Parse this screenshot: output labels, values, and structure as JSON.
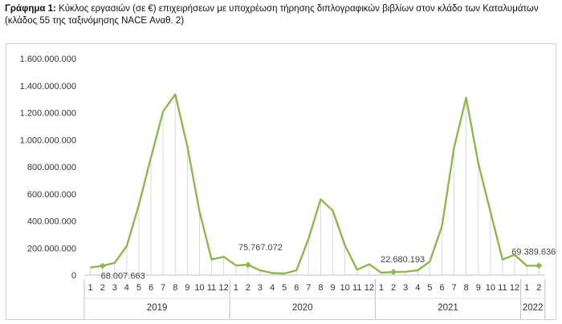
{
  "caption": {
    "prefix": "Γράφημα 1:",
    "text": "Κύκλος εργασιών (σε €) επιχειρήσεων με υποχρέωση τήρησης διπλογραφικών βιβλίων στον κλάδο των Καταλυμάτων (κλάδος 55 της ταξινόμησης NACE Αναθ. 2)"
  },
  "chart_data": {
    "type": "line",
    "title": "",
    "xlabel": "",
    "ylabel": "",
    "ylim": [
      0,
      1600000000
    ],
    "yticks": [
      "0",
      "200.000.000",
      "400.000.000",
      "600.000.000",
      "800.000.000",
      "1.000.000.000",
      "1.200.000.000",
      "1.400.000.000",
      "1.600.000.000"
    ],
    "yticks_values": [
      0,
      200000000,
      400000000,
      600000000,
      800000000,
      1000000000,
      1200000000,
      1400000000,
      1600000000
    ],
    "grid": "vertical drop lines",
    "color": "#92b554",
    "years": [
      {
        "label": "2019",
        "months": 12
      },
      {
        "label": "2020",
        "months": 12
      },
      {
        "label": "2021",
        "months": 12
      },
      {
        "label": "2022",
        "months": 2
      }
    ],
    "months": [
      "1",
      "2",
      "3",
      "4",
      "5",
      "6",
      "7",
      "8",
      "9",
      "10",
      "11",
      "12",
      "1",
      "2",
      "3",
      "4",
      "5",
      "6",
      "7",
      "8",
      "9",
      "10",
      "11",
      "12",
      "1",
      "2",
      "3",
      "4",
      "5",
      "6",
      "7",
      "8",
      "9",
      "10",
      "11",
      "12",
      "1",
      "2"
    ],
    "values": [
      55000000,
      68007663,
      90000000,
      215000000,
      520000000,
      870000000,
      1210000000,
      1335000000,
      950000000,
      470000000,
      115000000,
      135000000,
      72000000,
      75767072,
      35000000,
      15000000,
      12000000,
      35000000,
      270000000,
      560000000,
      475000000,
      220000000,
      40000000,
      80000000,
      18000000,
      22680193,
      25000000,
      35000000,
      100000000,
      360000000,
      940000000,
      1310000000,
      825000000,
      470000000,
      115000000,
      150000000,
      69389636,
      69389636
    ],
    "annotations": [
      {
        "index": 1,
        "label": "68.007.663"
      },
      {
        "index": 13,
        "label": "75.767.072"
      },
      {
        "index": 25,
        "label": "22.680.193"
      },
      {
        "index": 37,
        "label": "69.389.636"
      }
    ]
  }
}
